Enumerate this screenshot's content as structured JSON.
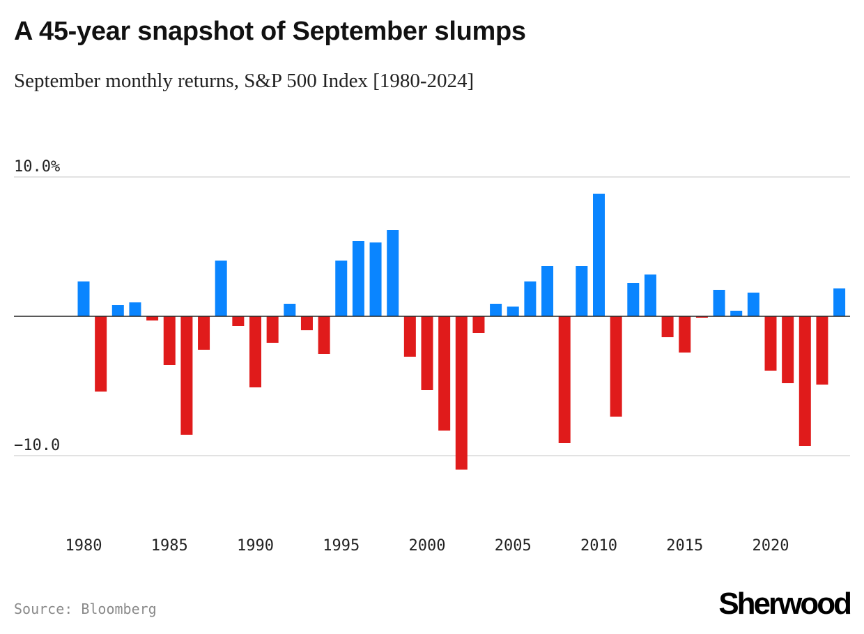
{
  "title": "A 45-year snapshot of September slumps",
  "subtitle": "September monthly returns, S&P 500 Index [1980-2024]",
  "source": "Source: Bloomberg",
  "logo_text": "Sherwood",
  "colors": {
    "positive": "#0a85ff",
    "negative": "#e01b1b",
    "gridline": "#d9d9d9",
    "baseline": "#222222"
  },
  "chart_data": {
    "type": "bar",
    "title": "A 45-year snapshot of September slumps",
    "subtitle": "September monthly returns, S&P 500 Index [1980-2024]",
    "xlabel": "",
    "ylabel": "",
    "ylim": [
      -11.5,
      10.5
    ],
    "grid": true,
    "y_ticks": [
      {
        "value": 10,
        "label": "10.0%"
      },
      {
        "value": -10,
        "label": "−10.0"
      }
    ],
    "x_ticks": [
      {
        "value": 1980,
        "label": "1980"
      },
      {
        "value": 1985,
        "label": "1985"
      },
      {
        "value": 1990,
        "label": "1990"
      },
      {
        "value": 1995,
        "label": "1995"
      },
      {
        "value": 2000,
        "label": "2000"
      },
      {
        "value": 2005,
        "label": "2005"
      },
      {
        "value": 2010,
        "label": "2010"
      },
      {
        "value": 2015,
        "label": "2015"
      },
      {
        "value": 2020,
        "label": "2020"
      }
    ],
    "categories": [
      1980,
      1981,
      1982,
      1983,
      1984,
      1985,
      1986,
      1987,
      1988,
      1989,
      1990,
      1991,
      1992,
      1993,
      1994,
      1995,
      1996,
      1997,
      1998,
      1999,
      2000,
      2001,
      2002,
      2003,
      2004,
      2005,
      2006,
      2007,
      2008,
      2009,
      2010,
      2011,
      2012,
      2013,
      2014,
      2015,
      2016,
      2017,
      2018,
      2019,
      2020,
      2021,
      2022,
      2023,
      2024
    ],
    "values": [
      2.5,
      -5.4,
      0.8,
      1.0,
      -0.3,
      -3.5,
      -8.5,
      -2.4,
      4.0,
      -0.7,
      -5.1,
      -1.9,
      0.9,
      -1.0,
      -2.7,
      4.0,
      5.4,
      5.3,
      6.2,
      -2.9,
      -5.3,
      -8.2,
      -11.0,
      -1.2,
      0.9,
      0.7,
      2.5,
      3.6,
      -9.1,
      3.6,
      8.8,
      -7.2,
      2.4,
      3.0,
      -1.5,
      -2.6,
      -0.1,
      1.9,
      0.4,
      1.7,
      -3.9,
      -4.8,
      -9.3,
      -4.9,
      2.0
    ]
  }
}
